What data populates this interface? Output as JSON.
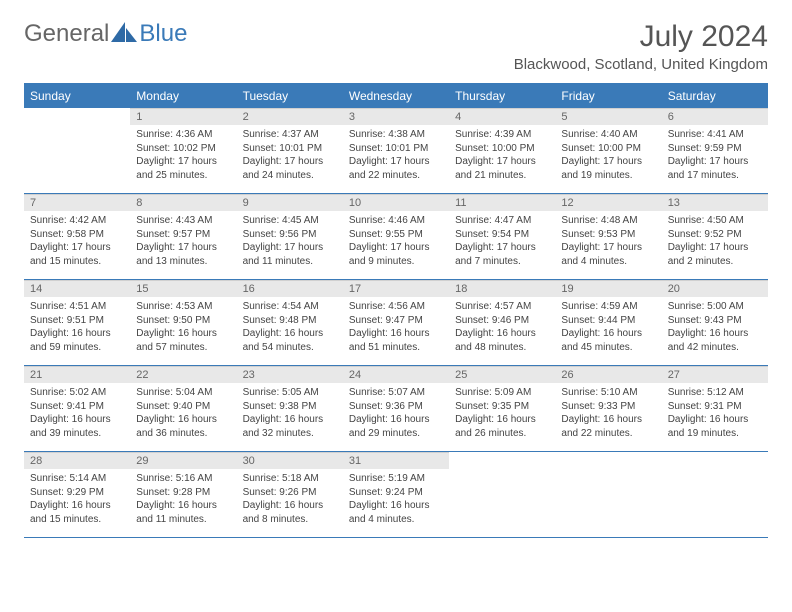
{
  "logo": {
    "text1": "General",
    "text2": "Blue"
  },
  "title": "July 2024",
  "subtitle": "Blackwood, Scotland, United Kingdom",
  "colors": {
    "header_bg": "#3a7ab8",
    "header_text": "#ffffff",
    "daynum_bg": "#e8e8e8",
    "text": "#444444",
    "border": "#3a7ab8"
  },
  "weekdays": [
    "Sunday",
    "Monday",
    "Tuesday",
    "Wednesday",
    "Thursday",
    "Friday",
    "Saturday"
  ],
  "weeks": [
    [
      null,
      {
        "n": "1",
        "sunrise": "4:36 AM",
        "sunset": "10:02 PM",
        "day_h": "17",
        "day_m": "25"
      },
      {
        "n": "2",
        "sunrise": "4:37 AM",
        "sunset": "10:01 PM",
        "day_h": "17",
        "day_m": "24"
      },
      {
        "n": "3",
        "sunrise": "4:38 AM",
        "sunset": "10:01 PM",
        "day_h": "17",
        "day_m": "22"
      },
      {
        "n": "4",
        "sunrise": "4:39 AM",
        "sunset": "10:00 PM",
        "day_h": "17",
        "day_m": "21"
      },
      {
        "n": "5",
        "sunrise": "4:40 AM",
        "sunset": "10:00 PM",
        "day_h": "17",
        "day_m": "19"
      },
      {
        "n": "6",
        "sunrise": "4:41 AM",
        "sunset": "9:59 PM",
        "day_h": "17",
        "day_m": "17"
      }
    ],
    [
      {
        "n": "7",
        "sunrise": "4:42 AM",
        "sunset": "9:58 PM",
        "day_h": "17",
        "day_m": "15"
      },
      {
        "n": "8",
        "sunrise": "4:43 AM",
        "sunset": "9:57 PM",
        "day_h": "17",
        "day_m": "13"
      },
      {
        "n": "9",
        "sunrise": "4:45 AM",
        "sunset": "9:56 PM",
        "day_h": "17",
        "day_m": "11"
      },
      {
        "n": "10",
        "sunrise": "4:46 AM",
        "sunset": "9:55 PM",
        "day_h": "17",
        "day_m": "9"
      },
      {
        "n": "11",
        "sunrise": "4:47 AM",
        "sunset": "9:54 PM",
        "day_h": "17",
        "day_m": "7"
      },
      {
        "n": "12",
        "sunrise": "4:48 AM",
        "sunset": "9:53 PM",
        "day_h": "17",
        "day_m": "4"
      },
      {
        "n": "13",
        "sunrise": "4:50 AM",
        "sunset": "9:52 PM",
        "day_h": "17",
        "day_m": "2"
      }
    ],
    [
      {
        "n": "14",
        "sunrise": "4:51 AM",
        "sunset": "9:51 PM",
        "day_h": "16",
        "day_m": "59"
      },
      {
        "n": "15",
        "sunrise": "4:53 AM",
        "sunset": "9:50 PM",
        "day_h": "16",
        "day_m": "57"
      },
      {
        "n": "16",
        "sunrise": "4:54 AM",
        "sunset": "9:48 PM",
        "day_h": "16",
        "day_m": "54"
      },
      {
        "n": "17",
        "sunrise": "4:56 AM",
        "sunset": "9:47 PM",
        "day_h": "16",
        "day_m": "51"
      },
      {
        "n": "18",
        "sunrise": "4:57 AM",
        "sunset": "9:46 PM",
        "day_h": "16",
        "day_m": "48"
      },
      {
        "n": "19",
        "sunrise": "4:59 AM",
        "sunset": "9:44 PM",
        "day_h": "16",
        "day_m": "45"
      },
      {
        "n": "20",
        "sunrise": "5:00 AM",
        "sunset": "9:43 PM",
        "day_h": "16",
        "day_m": "42"
      }
    ],
    [
      {
        "n": "21",
        "sunrise": "5:02 AM",
        "sunset": "9:41 PM",
        "day_h": "16",
        "day_m": "39"
      },
      {
        "n": "22",
        "sunrise": "5:04 AM",
        "sunset": "9:40 PM",
        "day_h": "16",
        "day_m": "36"
      },
      {
        "n": "23",
        "sunrise": "5:05 AM",
        "sunset": "9:38 PM",
        "day_h": "16",
        "day_m": "32"
      },
      {
        "n": "24",
        "sunrise": "5:07 AM",
        "sunset": "9:36 PM",
        "day_h": "16",
        "day_m": "29"
      },
      {
        "n": "25",
        "sunrise": "5:09 AM",
        "sunset": "9:35 PM",
        "day_h": "16",
        "day_m": "26"
      },
      {
        "n": "26",
        "sunrise": "5:10 AM",
        "sunset": "9:33 PM",
        "day_h": "16",
        "day_m": "22"
      },
      {
        "n": "27",
        "sunrise": "5:12 AM",
        "sunset": "9:31 PM",
        "day_h": "16",
        "day_m": "19"
      }
    ],
    [
      {
        "n": "28",
        "sunrise": "5:14 AM",
        "sunset": "9:29 PM",
        "day_h": "16",
        "day_m": "15"
      },
      {
        "n": "29",
        "sunrise": "5:16 AM",
        "sunset": "9:28 PM",
        "day_h": "16",
        "day_m": "11"
      },
      {
        "n": "30",
        "sunrise": "5:18 AM",
        "sunset": "9:26 PM",
        "day_h": "16",
        "day_m": "8"
      },
      {
        "n": "31",
        "sunrise": "5:19 AM",
        "sunset": "9:24 PM",
        "day_h": "16",
        "day_m": "4"
      },
      null,
      null,
      null
    ]
  ]
}
